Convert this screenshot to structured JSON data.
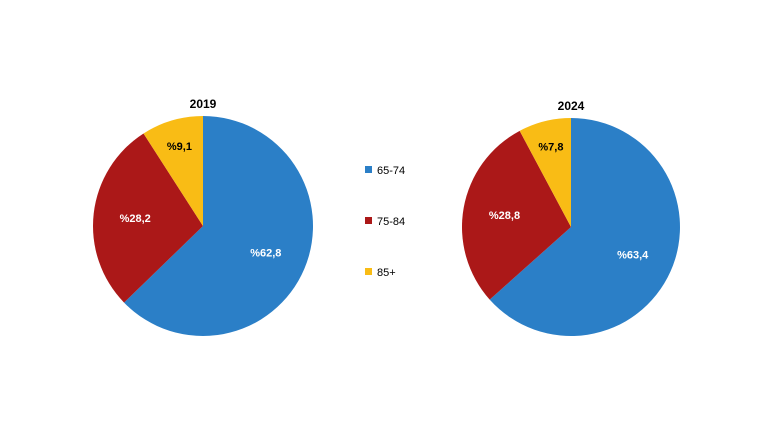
{
  "chart_data": [
    {
      "type": "pie",
      "title": "2019",
      "categories": [
        "65-74",
        "75-84",
        "85+"
      ],
      "values": [
        62.8,
        28.2,
        9.1
      ],
      "labels": [
        "%62,8",
        "%28,2",
        "%9,1"
      ]
    },
    {
      "type": "pie",
      "title": "2024",
      "categories": [
        "65-74",
        "75-84",
        "85+"
      ],
      "values": [
        63.4,
        28.8,
        7.8
      ],
      "labels": [
        "%63,4",
        "%28,8",
        "%7,8"
      ]
    }
  ],
  "legend": {
    "placement": "center",
    "items": [
      {
        "label": "65-74",
        "color": "#2b7fc7"
      },
      {
        "label": "75-84",
        "color": "#ab1818"
      },
      {
        "label": "85+",
        "color": "#f9bc15"
      }
    ]
  },
  "colors": {
    "65-74": "#2b7fc7",
    "75-84": "#ab1818",
    "85+": "#f9bc15",
    "label_on_light": "#000000",
    "label_on_dark": "#ffffff"
  }
}
